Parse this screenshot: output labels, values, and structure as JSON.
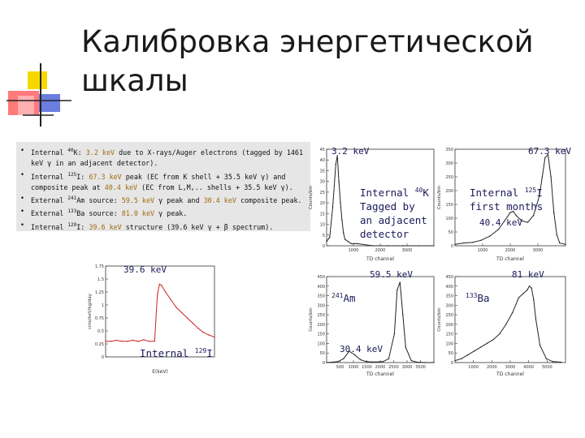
{
  "title": {
    "line1": "Калибровка энергетической",
    "line2": "шкалы"
  },
  "notes": [
    {
      "bullet": "•",
      "parts": [
        [
          "n",
          "Internal "
        ],
        [
          "s",
          "40"
        ],
        [
          "n",
          "K: "
        ],
        [
          "e",
          "3.2 keV"
        ],
        [
          "n",
          " due to X-rays/Auger electrons (tagged by 1461 keV γ in an adjacent detector)."
        ]
      ]
    },
    {
      "bullet": "•",
      "parts": [
        [
          "n",
          "Internal "
        ],
        [
          "s",
          "125"
        ],
        [
          "n",
          "I: "
        ],
        [
          "e",
          "67.3 keV"
        ],
        [
          "n",
          " peak (EC from K shell + 35.5 keV γ) and composite peak at "
        ],
        [
          "e",
          "40.4 keV"
        ],
        [
          "n",
          " (EC from L,M,.. shells + 35.5 keV γ)."
        ]
      ]
    },
    {
      "bullet": "•",
      "parts": [
        [
          "n",
          "External "
        ],
        [
          "s",
          "241"
        ],
        [
          "n",
          "Am source: "
        ],
        [
          "e",
          "59.5 keV"
        ],
        [
          "n",
          " γ peak and "
        ],
        [
          "e",
          "30.4 keV"
        ],
        [
          "n",
          " composite peak."
        ]
      ]
    },
    {
      "bullet": "•",
      "parts": [
        [
          "n",
          "External "
        ],
        [
          "s",
          "133"
        ],
        [
          "n",
          "Ba source: "
        ],
        [
          "e",
          "81.0 keV"
        ],
        [
          "n",
          " γ peak."
        ]
      ]
    },
    {
      "bullet": "•",
      "parts": [
        [
          "n",
          "Internal "
        ],
        [
          "s",
          "129"
        ],
        [
          "n",
          "I: "
        ],
        [
          "e",
          "39.6 keV"
        ],
        [
          "n",
          " structure (39.6 keV γ + β spectrum)."
        ]
      ]
    }
  ],
  "colors": {
    "curve": "#cc2020",
    "curve_dark": "#222222",
    "annotation": "#1a1a5a",
    "note_bg": "#e6e6e6",
    "highlight": "#a06a10"
  },
  "chart_data": [
    {
      "type": "line",
      "id": "i129",
      "xlabel": "E(keV)",
      "ylabel": "cnts/keV/kg/day",
      "yticks": [
        "1.75",
        "1.5",
        "1.25",
        "1",
        "0.75",
        "0.5",
        "0.25",
        "0"
      ],
      "ylim": [
        0,
        1.75
      ],
      "xlim": [
        0,
        80
      ],
      "x": [
        0,
        4,
        8,
        12,
        16,
        20,
        24,
        28,
        32,
        36,
        38,
        39.6,
        41,
        44,
        48,
        52,
        56,
        60,
        64,
        68,
        72,
        76,
        80
      ],
      "y": [
        0.3,
        0.3,
        0.32,
        0.3,
        0.3,
        0.32,
        0.3,
        0.33,
        0.3,
        0.3,
        1.2,
        1.4,
        1.38,
        1.25,
        1.1,
        0.95,
        0.85,
        0.75,
        0.65,
        0.55,
        0.47,
        0.42,
        0.38
      ],
      "annotations": [
        "39.6 keV",
        "Internal",
        "129",
        "I"
      ]
    },
    {
      "type": "line",
      "id": "k40",
      "xlabel": "TD channel",
      "ylabel": "Counts/bin",
      "yticks": [
        "45",
        "40",
        "35",
        "30",
        "25",
        "20",
        "15",
        "10",
        "5",
        "0"
      ],
      "xticks": [
        "1000",
        "2000",
        "3000"
      ],
      "ylim": [
        0,
        45
      ],
      "xlim": [
        0,
        3500
      ],
      "x": [
        0,
        100,
        200,
        300,
        350,
        400,
        450,
        500,
        550,
        600,
        700,
        800,
        900,
        1000,
        1500,
        2000,
        2500,
        3000,
        3500
      ],
      "y": [
        2,
        4,
        18,
        38,
        42,
        30,
        20,
        12,
        6,
        3,
        2,
        1,
        1,
        1,
        0,
        0,
        0,
        0,
        0
      ],
      "annotations": [
        "3.2 keV",
        "Internal",
        "40",
        "K",
        "Tagged by",
        "an adjacent",
        "detector"
      ]
    },
    {
      "type": "line",
      "id": "i125",
      "xlabel": "TD channel",
      "ylabel": "Counts/bin",
      "yticks": [
        "350",
        "300",
        "250",
        "200",
        "150",
        "100",
        "50",
        "0"
      ],
      "xticks": [
        "1000",
        "2000",
        "3000"
      ],
      "ylim": [
        0,
        350
      ],
      "xlim": [
        0,
        3800
      ],
      "x": [
        0,
        300,
        600,
        900,
        1200,
        1500,
        1700,
        1900,
        2000,
        2100,
        2300,
        2500,
        2700,
        2900,
        3000,
        3100,
        3200,
        3300,
        3400,
        3500,
        3600,
        3800
      ],
      "y": [
        5,
        10,
        12,
        20,
        35,
        60,
        90,
        120,
        125,
        110,
        90,
        85,
        110,
        180,
        250,
        320,
        330,
        250,
        120,
        40,
        10,
        5
      ],
      "annotations": [
        "67.3 keV",
        "Internal",
        "125",
        "I",
        "first months",
        "40.4 keV"
      ]
    },
    {
      "type": "line",
      "id": "am241",
      "xlabel": "TD channel",
      "ylabel": "Counts/bin",
      "yticks": [
        "450",
        "400",
        "350",
        "300",
        "250",
        "200",
        "150",
        "100",
        "50",
        "0"
      ],
      "xticks": [
        "500",
        "1000",
        "1500",
        "2000",
        "2500",
        "3000",
        "3500"
      ],
      "ylim": [
        0,
        450
      ],
      "xlim": [
        0,
        3800
      ],
      "x": [
        0,
        200,
        400,
        600,
        800,
        1000,
        1200,
        1400,
        1600,
        1800,
        2000,
        2200,
        2400,
        2500,
        2600,
        2700,
        2800,
        3000,
        3200,
        3500,
        3800
      ],
      "y": [
        0,
        2,
        5,
        20,
        60,
        40,
        15,
        5,
        3,
        3,
        5,
        20,
        150,
        380,
        420,
        250,
        80,
        10,
        2,
        0,
        0
      ],
      "annotations": [
        "59.5 keV",
        "241",
        "Am",
        "30.4 keV"
      ]
    },
    {
      "type": "line",
      "id": "ba133",
      "xlabel": "TD channel",
      "ylabel": "Counts/bin",
      "yticks": [
        "450",
        "400",
        "350",
        "300",
        "250",
        "200",
        "150",
        "100",
        "50",
        "0"
      ],
      "xticks": [
        "1000",
        "2000",
        "3000",
        "4000",
        "5000"
      ],
      "ylim": [
        0,
        450
      ],
      "xlim": [
        0,
        5200
      ],
      "x": [
        0,
        300,
        600,
        900,
        1200,
        1500,
        1800,
        2100,
        2400,
        2700,
        3000,
        3200,
        3400,
        3500,
        3600,
        3700,
        3800,
        4000,
        4300,
        4600,
        5000
      ],
      "y": [
        10,
        20,
        40,
        60,
        80,
        100,
        120,
        150,
        200,
        260,
        340,
        360,
        380,
        400,
        390,
        330,
        230,
        90,
        20,
        5,
        2
      ],
      "annotations": [
        "81 keV",
        "133",
        "Ba"
      ]
    }
  ]
}
